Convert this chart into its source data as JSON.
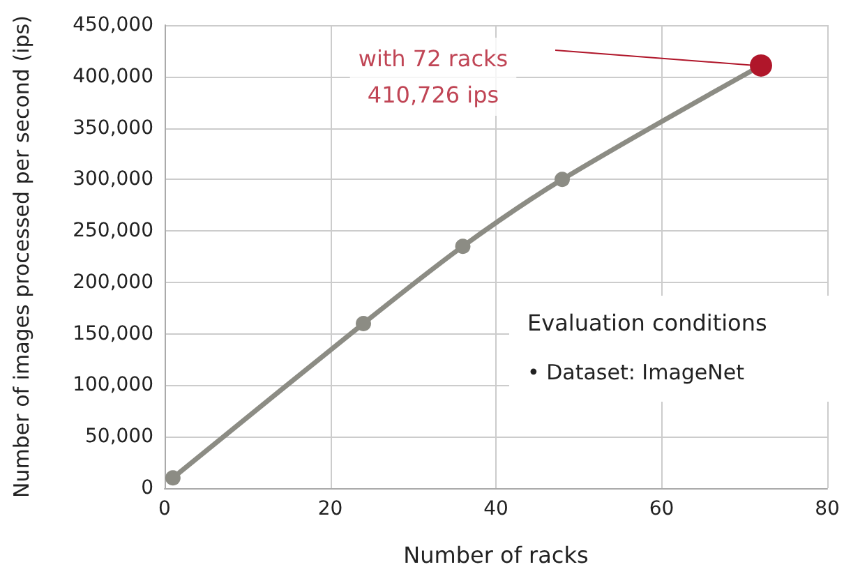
{
  "chart_data": {
    "type": "line",
    "xlabel": "Number of racks",
    "ylabel": "Number of images processed per second (ips)",
    "x": [
      1,
      24,
      36,
      48,
      72
    ],
    "series": [
      {
        "color": "#8c8c84",
        "colors": [
          "#8c8c84",
          "#8c8c84",
          "#8c8c84",
          "#8c8c84",
          "#b0162a"
        ],
        "values": [
          10000,
          160000,
          235000,
          300000,
          410726
        ]
      }
    ],
    "xlim": [
      0,
      80
    ],
    "xticks": [
      0,
      20,
      40,
      60,
      80
    ],
    "ylim": [
      0,
      450000
    ],
    "yticks": [
      0,
      {
        "value": 50000,
        "label": "50,000"
      },
      {
        "value": 100000,
        "label": "100,000"
      },
      {
        "value": 150000,
        "label": "150,000"
      },
      {
        "value": 200000,
        "label": "200,000"
      },
      {
        "value": 250000,
        "label": "250,000"
      },
      {
        "value": 300000,
        "label": "300,000"
      },
      {
        "value": 350000,
        "label": "350,000"
      },
      {
        "value": 400000,
        "label": "400,000"
      },
      {
        "value": 450000,
        "label": "450,000"
      }
    ],
    "grid": true,
    "marker": "circle",
    "line_style": "solid",
    "annotations": [
      "with 72 racks\n410,726 ips",
      "Evaluation conditions",
      "• Dataset: ImageNet"
    ]
  }
}
